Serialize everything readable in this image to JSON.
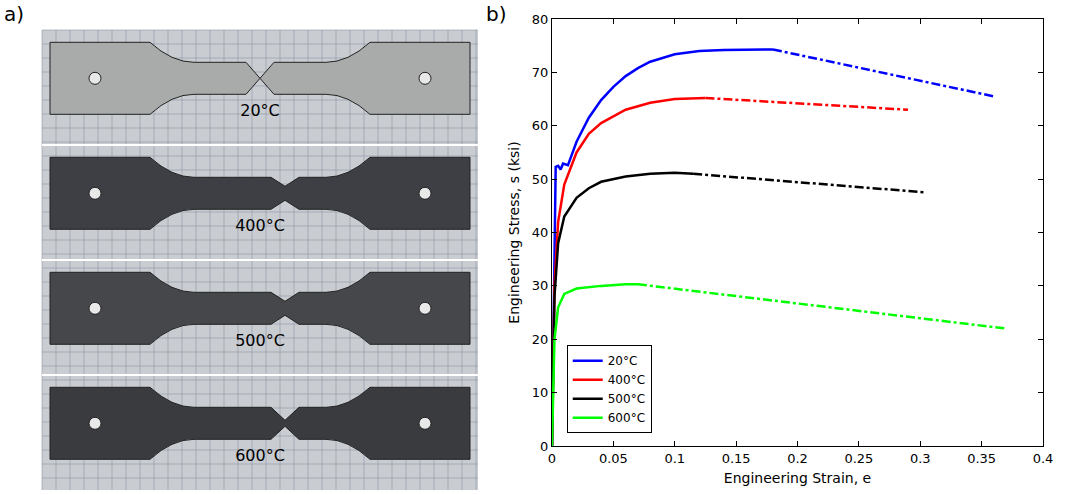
{
  "figure": {
    "panel_a": {
      "letter": "a)",
      "labels": [
        "20°C",
        "400°C",
        "500°C",
        "600°C"
      ]
    },
    "panel_b": {
      "letter": "b)"
    }
  },
  "chart_data": {
    "type": "line",
    "x_label": "Engineering Strain, e",
    "y_label": "Engineering Stress, s (ksi)",
    "xlim": [
      0,
      0.4
    ],
    "xticks": [
      0,
      0.05,
      0.1,
      0.15,
      0.2,
      0.25,
      0.3,
      0.35,
      0.4
    ],
    "ylim": [
      0,
      80
    ],
    "yticks": [
      0,
      10,
      20,
      30,
      40,
      50,
      60,
      70,
      80
    ],
    "grid": false,
    "legend": "lower left",
    "series": [
      {
        "name": "20°C",
        "color": "#0000ff",
        "line_style": "solid",
        "x": [
          0,
          0.001,
          0.002,
          0.003,
          0.005,
          0.007,
          0.009,
          0.011,
          0.013,
          0.016,
          0.02,
          0.03,
          0.04,
          0.05,
          0.06,
          0.07,
          0.08,
          0.1,
          0.12,
          0.14,
          0.16,
          0.18
        ],
        "values": [
          0,
          20,
          40,
          52.3,
          52.5,
          51.8,
          52.9,
          52.8,
          52.6,
          54.5,
          57,
          61.5,
          64.8,
          67.3,
          69.3,
          70.8,
          72,
          73.4,
          74,
          74.2,
          74.3,
          74.3
        ]
      },
      {
        "color": "#0000ff",
        "line_style": "dashdot",
        "x": [
          0.18,
          0.36
        ],
        "values": [
          74.3,
          65.5
        ]
      },
      {
        "name": "400°C",
        "color": "#ff0000",
        "line_style": "solid",
        "x": [
          0,
          0.001,
          0.002,
          0.005,
          0.01,
          0.02,
          0.03,
          0.04,
          0.06,
          0.08,
          0.1,
          0.125
        ],
        "values": [
          0,
          20,
          30,
          42,
          49,
          55,
          58.5,
          60.5,
          63,
          64.3,
          65,
          65.2
        ]
      },
      {
        "color": "#ff0000",
        "line_style": "dashdot",
        "x": [
          0.125,
          0.29
        ],
        "values": [
          65.2,
          63
        ]
      },
      {
        "name": "500°C",
        "color": "#000000",
        "line_style": "solid",
        "x": [
          0,
          0.001,
          0.002,
          0.005,
          0.01,
          0.02,
          0.03,
          0.04,
          0.06,
          0.08,
          0.1,
          0.115
        ],
        "values": [
          0,
          20,
          28,
          38,
          43,
          46.5,
          48.3,
          49.5,
          50.5,
          51,
          51.2,
          51
        ]
      },
      {
        "color": "#000000",
        "line_style": "dashdot",
        "x": [
          0.115,
          0.305
        ],
        "values": [
          51,
          47.5
        ]
      },
      {
        "name": "600°C",
        "color": "#00ff00",
        "line_style": "solid",
        "x": [
          0,
          0.001,
          0.002,
          0.005,
          0.01,
          0.02,
          0.04,
          0.06,
          0.07
        ],
        "values": [
          0,
          12,
          20,
          26,
          28.5,
          29.5,
          30,
          30.3,
          30.3
        ]
      },
      {
        "color": "#00ff00",
        "line_style": "dashdot",
        "x": [
          0.07,
          0.37
        ],
        "values": [
          30.3,
          22
        ]
      }
    ]
  }
}
